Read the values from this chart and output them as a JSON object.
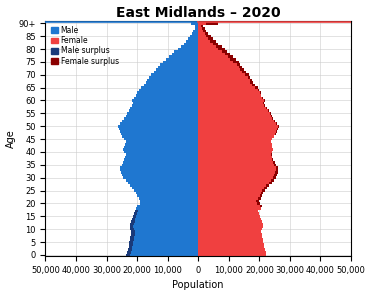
{
  "title": "East Midlands – 2020",
  "xlabel": "Population",
  "ylabel": "Age",
  "xlim": 50000,
  "xtick_step": 10000,
  "ages": [
    0,
    1,
    2,
    3,
    4,
    5,
    6,
    7,
    8,
    9,
    10,
    11,
    12,
    13,
    14,
    15,
    16,
    17,
    18,
    19,
    20,
    21,
    22,
    23,
    24,
    25,
    26,
    27,
    28,
    29,
    30,
    31,
    32,
    33,
    34,
    35,
    36,
    37,
    38,
    39,
    40,
    41,
    42,
    43,
    44,
    45,
    46,
    47,
    48,
    49,
    50,
    51,
    52,
    53,
    54,
    55,
    56,
    57,
    58,
    59,
    60,
    61,
    62,
    63,
    64,
    65,
    66,
    67,
    68,
    69,
    70,
    71,
    72,
    73,
    74,
    75,
    76,
    77,
    78,
    79,
    80,
    81,
    82,
    83,
    84,
    85,
    86,
    87,
    88,
    89,
    90
  ],
  "male": [
    23500,
    23200,
    22900,
    22700,
    22500,
    22500,
    22350,
    22200,
    22050,
    21900,
    22200,
    22350,
    22200,
    21900,
    21600,
    21300,
    21000,
    20700,
    20400,
    20100,
    19200,
    18900,
    19500,
    20100,
    20400,
    21000,
    21600,
    22200,
    23100,
    23700,
    24600,
    24900,
    25200,
    25500,
    25500,
    24900,
    24600,
    24300,
    24000,
    23700,
    24300,
    24600,
    24300,
    24000,
    23700,
    24300,
    24900,
    25200,
    25500,
    25800,
    26100,
    25500,
    24900,
    24300,
    23700,
    23400,
    22800,
    22200,
    21600,
    21300,
    21600,
    21000,
    20400,
    20100,
    19500,
    18600,
    17700,
    17100,
    16800,
    16200,
    15300,
    14400,
    13800,
    13200,
    12600,
    11400,
    10500,
    9600,
    8700,
    7800,
    6600,
    5700,
    4800,
    3900,
    3300,
    2700,
    2100,
    1650,
    1200,
    900,
    2400
  ],
  "female": [
    22200,
    22050,
    21750,
    21600,
    21450,
    21300,
    21150,
    21000,
    20850,
    20700,
    21000,
    21300,
    21150,
    20850,
    20550,
    20250,
    19950,
    19650,
    20400,
    21000,
    20100,
    19800,
    20400,
    21000,
    21300,
    21900,
    22500,
    23100,
    24300,
    24900,
    25500,
    25800,
    26100,
    26100,
    26100,
    25500,
    25200,
    24600,
    24300,
    24000,
    24300,
    24600,
    24300,
    24000,
    23700,
    24300,
    24900,
    25500,
    25800,
    26100,
    26400,
    25800,
    25200,
    24600,
    24000,
    23700,
    23100,
    22500,
    21900,
    21600,
    21900,
    21300,
    20700,
    20400,
    19800,
    19500,
    18600,
    18000,
    17700,
    17100,
    16500,
    15600,
    15000,
    14400,
    13800,
    13200,
    12300,
    11400,
    10500,
    9300,
    8700,
    7800,
    6600,
    5700,
    4800,
    4200,
    3300,
    2700,
    2100,
    1650,
    6600
  ],
  "male_color": "#1f77d0",
  "female_color": "#f04040",
  "male_surplus_color": "#1a3a7a",
  "female_surplus_color": "#8b0000",
  "background_color": "#ffffff",
  "grid_color": "#cccccc",
  "title_fontsize": 10,
  "label_fontsize": 7,
  "tick_fontsize": 6
}
